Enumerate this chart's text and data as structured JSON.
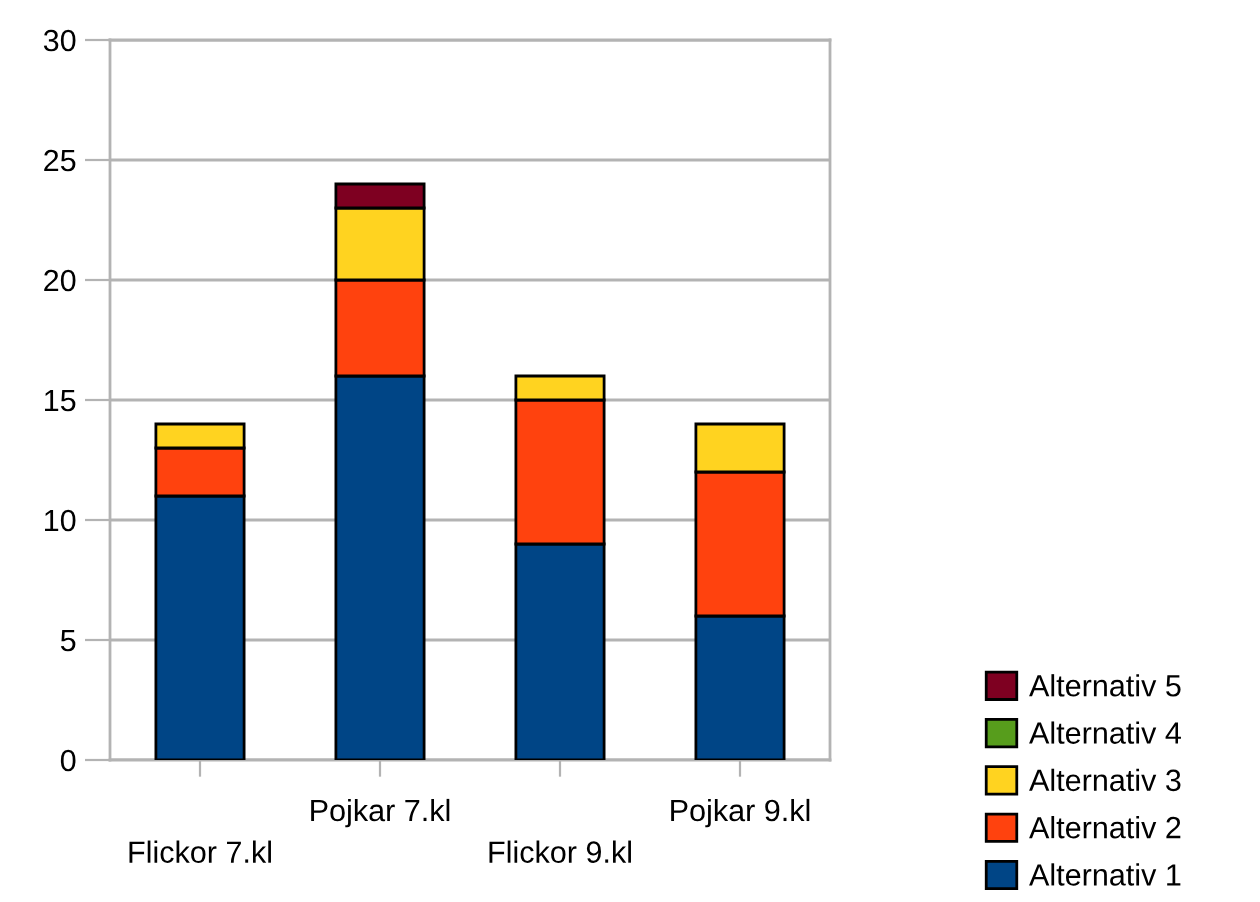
{
  "chart_data": {
    "type": "bar",
    "stacked": true,
    "categories": [
      "Flickor 7.kl",
      "Pojkar 7.kl",
      "Flickor 9.kl",
      "Pojkar 9.kl"
    ],
    "series": [
      {
        "name": "Alternativ 1",
        "color": "#004586",
        "values": [
          11,
          16,
          9,
          6
        ]
      },
      {
        "name": "Alternativ 2",
        "color": "#ff420e",
        "values": [
          2,
          4,
          6,
          6
        ]
      },
      {
        "name": "Alternativ 3",
        "color": "#ffd320",
        "values": [
          1,
          3,
          1,
          2
        ]
      },
      {
        "name": "Alternativ 4",
        "color": "#579d1c",
        "values": [
          null,
          null,
          null,
          null
        ]
      },
      {
        "name": "Alternativ 5",
        "color": "#7e0021",
        "values": [
          null,
          1,
          null,
          null
        ]
      }
    ],
    "ylim": [
      0,
      30
    ],
    "yticks": [
      0,
      5,
      10,
      15,
      20,
      25,
      30
    ],
    "grid": "y",
    "legend": "right"
  }
}
